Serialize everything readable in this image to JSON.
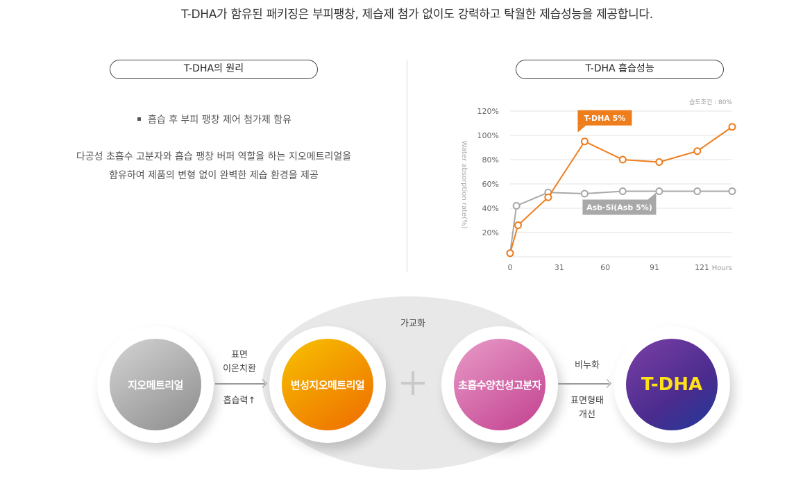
{
  "headline": "T-DHA가 함유된 패키징은 부피팽창, 제습제 첨가 없이도 강력하고 탁월한 제습성능을 제공합니다.",
  "left_panel": {
    "title": "T-DHA의 원리",
    "bullet": "흡습 후 부피 팽창 제어 첨가제 함유",
    "description": [
      "다공성 초흡수 고분자와 흡습 팽창 버퍼 역할을 하는 지오메트리얼을",
      "함유하여 제품의 변형 없이 완벽한 제습 환경을 제공"
    ]
  },
  "right_panel": {
    "title": "T-DHA 흡습성능"
  },
  "chart_data": {
    "type": "line",
    "annotation": "습도조건 : 80%",
    "ylabel": "Water absorption rate(%)",
    "xlabel": "Hours",
    "y_ticks": [
      "20%",
      "40%",
      "60%",
      "80%",
      "100%",
      "120%"
    ],
    "x_ticks": [
      0,
      31,
      60,
      91,
      121
    ],
    "ylim": [
      0,
      120
    ],
    "xlim": [
      0,
      140
    ],
    "grid": true,
    "series": [
      {
        "name": "T-DHA 5%",
        "color": "#ee7d1c",
        "points": [
          [
            0,
            3
          ],
          [
            5,
            26
          ],
          [
            24,
            49
          ],
          [
            47,
            95
          ],
          [
            71,
            80
          ],
          [
            94,
            78
          ],
          [
            118,
            87
          ],
          [
            140,
            107
          ]
        ]
      },
      {
        "name": "Asb-Si(Asb 5%)",
        "color": "#a8a8a8",
        "points": [
          [
            0,
            3
          ],
          [
            4,
            42
          ],
          [
            24,
            53
          ],
          [
            47,
            52
          ],
          [
            71,
            54
          ],
          [
            94,
            54
          ],
          [
            118,
            54
          ],
          [
            140,
            54
          ]
        ]
      }
    ]
  },
  "flow": {
    "nodes": [
      "지오메트리얼",
      "변성지오메트리얼",
      "초흡수양친성고분자",
      "T-DHA"
    ],
    "step1_top": [
      "표면",
      "이온치환"
    ],
    "step1_bottom": "흡습력↑",
    "crosslink": "가교화",
    "step3_top": "비누화",
    "step3_bottom": [
      "표면형태",
      "개선"
    ]
  }
}
